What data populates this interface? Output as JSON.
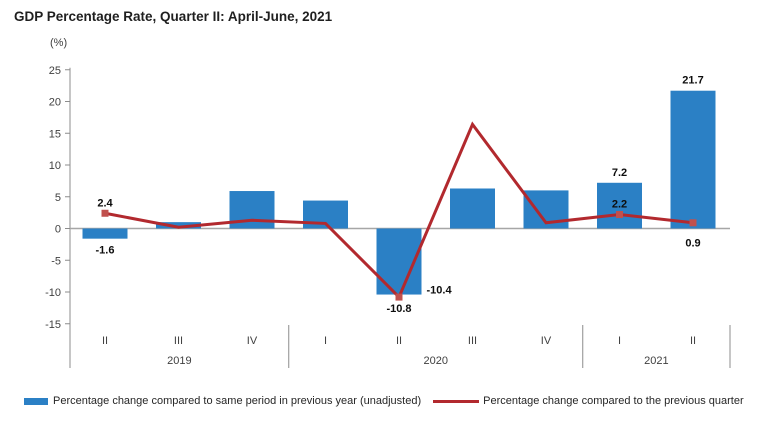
{
  "title": "GDP Percentage Rate, Quarter II: April-June, 2021",
  "colors": {
    "bar": "#2b80c5",
    "line": "#b2292e",
    "marker": "#c0504d",
    "zero_line": "#a6a6a6",
    "axis": "#8c8c8c",
    "tick_text": "#404040",
    "data_label": "#0d0d0d"
  },
  "y_axis": {
    "unit": "(%)",
    "tick_labels": [
      25,
      20,
      15,
      10,
      5,
      0,
      -5,
      -10,
      -15
    ]
  },
  "chart_data": {
    "type": "bar+line",
    "title": "GDP Percentage Rate, Quarter II: April-June, 2021",
    "xlabel": "",
    "ylabel": "(%)",
    "ylim": [
      -15,
      25
    ],
    "ytick_step": 5,
    "grid": false,
    "legend_position": "bottom",
    "categories": [
      "II",
      "III",
      "IV",
      "I",
      "II",
      "III",
      "IV",
      "I",
      "II"
    ],
    "year_groups": [
      {
        "label": "2019",
        "span": [
          0,
          2
        ]
      },
      {
        "label": "2020",
        "span": [
          3,
          6
        ]
      },
      {
        "label": "2021",
        "span": [
          7,
          8
        ]
      }
    ],
    "series": [
      {
        "name": "Percentage change compared to same period in previous year (unadjusted)",
        "type": "bar",
        "values": [
          -1.6,
          1.0,
          5.9,
          4.4,
          -10.4,
          6.3,
          6.0,
          7.2,
          21.7
        ],
        "labels": [
          {
            "index": 0,
            "text": "-1.6",
            "side": "below"
          },
          {
            "index": 4,
            "text": "-10.4",
            "side": "right"
          },
          {
            "index": 7,
            "text": "7.2",
            "side": "above"
          },
          {
            "index": 8,
            "text": "21.7",
            "side": "above"
          }
        ]
      },
      {
        "name": "Percentage change compared to the previous quarter",
        "type": "line",
        "values": [
          2.4,
          0.2,
          1.3,
          0.8,
          -10.8,
          16.4,
          0.9,
          2.2,
          0.9
        ],
        "marker_points": [
          0,
          4,
          7,
          8
        ],
        "labels": [
          {
            "index": 0,
            "text": "2.4",
            "side": "above"
          },
          {
            "index": 4,
            "text": "-10.8",
            "side": "below"
          },
          {
            "index": 7,
            "text": "2.2",
            "side": "above"
          },
          {
            "index": 8,
            "text": "0.9",
            "side": "below"
          }
        ]
      }
    ]
  },
  "legend": {
    "bar_label": "Percentage change compared to same period in previous year (unadjusted)",
    "line_label": "Percentage change compared to the previous quarter"
  }
}
